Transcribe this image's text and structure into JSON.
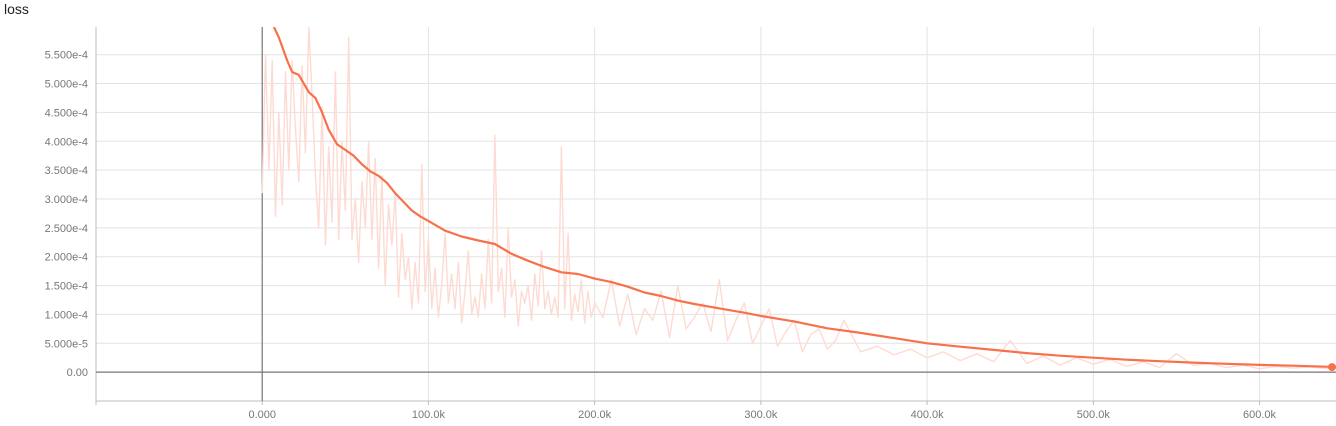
{
  "chart_data": {
    "type": "line",
    "title": "loss",
    "xlabel": "",
    "ylabel": "",
    "xlim": [
      -100000,
      646000
    ],
    "ylim": [
      -5e-05,
      0.000598
    ],
    "grid": true,
    "legend": "none",
    "x_ticks": [
      {
        "value": 0,
        "label": "0.000"
      },
      {
        "value": 100000,
        "label": "100.0k"
      },
      {
        "value": 200000,
        "label": "200.0k"
      },
      {
        "value": 300000,
        "label": "300.0k"
      },
      {
        "value": 400000,
        "label": "400.0k"
      },
      {
        "value": 500000,
        "label": "500.0k"
      },
      {
        "value": 600000,
        "label": "600.0k"
      }
    ],
    "y_ticks": [
      {
        "value": 0,
        "label": "0.00"
      },
      {
        "value": 5e-05,
        "label": "5.000e-5"
      },
      {
        "value": 0.0001,
        "label": "1.000e-4"
      },
      {
        "value": 0.00015,
        "label": "1.500e-4"
      },
      {
        "value": 0.0002,
        "label": "2.000e-4"
      },
      {
        "value": 0.00025,
        "label": "2.500e-4"
      },
      {
        "value": 0.0003,
        "label": "3.000e-4"
      },
      {
        "value": 0.00035,
        "label": "3.500e-4"
      },
      {
        "value": 0.0004,
        "label": "4.000e-4"
      },
      {
        "value": 0.00045,
        "label": "4.500e-4"
      },
      {
        "value": 0.0005,
        "label": "5.000e-4"
      },
      {
        "value": 0.00055,
        "label": "5.500e-4"
      }
    ],
    "series": [
      {
        "role": "smoothed",
        "color": "#f7714b",
        "x": [
          7000,
          10000,
          15000,
          18000,
          22000,
          25000,
          28000,
          32000,
          36000,
          40000,
          45000,
          50000,
          55000,
          60000,
          65000,
          70000,
          75000,
          80000,
          85000,
          90000,
          95000,
          100000,
          110000,
          120000,
          130000,
          140000,
          150000,
          160000,
          170000,
          180000,
          190000,
          200000,
          210000,
          220000,
          230000,
          240000,
          250000,
          260000,
          270000,
          280000,
          290000,
          300000,
          320000,
          340000,
          360000,
          380000,
          400000,
          420000,
          440000,
          460000,
          480000,
          500000,
          520000,
          540000,
          560000,
          580000,
          600000,
          620000,
          640000,
          646000
        ],
        "y": [
          0.000598,
          0.00058,
          0.00054,
          0.00052,
          0.000515,
          0.0005,
          0.000485,
          0.000475,
          0.00045,
          0.00042,
          0.000395,
          0.000385,
          0.000375,
          0.00036,
          0.000348,
          0.00034,
          0.000328,
          0.00031,
          0.000295,
          0.00028,
          0.00027,
          0.000262,
          0.000245,
          0.000235,
          0.000228,
          0.000222,
          0.000205,
          0.000193,
          0.000182,
          0.000173,
          0.00017,
          0.000162,
          0.000156,
          0.000148,
          0.000138,
          0.000132,
          0.000124,
          0.000118,
          0.000113,
          0.000108,
          0.000103,
          9.75e-05,
          8.8e-05,
          7.6e-05,
          6.8e-05,
          5.9e-05,
          5e-05,
          4.4e-05,
          3.85e-05,
          3.3e-05,
          2.85e-05,
          2.5e-05,
          2.15e-05,
          1.9e-05,
          1.65e-05,
          1.45e-05,
          1.25e-05,
          1.12e-05,
          9.5e-06,
          8.8e-06
        ]
      },
      {
        "role": "raw",
        "color": "#fddbd2",
        "x": [
          0,
          2000,
          4000,
          6000,
          8000,
          10000,
          12000,
          14000,
          16000,
          18000,
          20000,
          22000,
          24000,
          26000,
          28000,
          30000,
          32000,
          34000,
          36000,
          38000,
          40000,
          42000,
          44000,
          46000,
          48000,
          50000,
          52000,
          54000,
          56000,
          58000,
          60000,
          62000,
          64000,
          66000,
          68000,
          70000,
          72000,
          74000,
          76000,
          78000,
          80000,
          82000,
          84000,
          86000,
          88000,
          90000,
          92000,
          94000,
          96000,
          98000,
          100000,
          102000,
          104000,
          106000,
          108000,
          110000,
          112000,
          114000,
          116000,
          118000,
          120000,
          122000,
          124000,
          126000,
          128000,
          130000,
          132000,
          134000,
          136000,
          138000,
          140000,
          142000,
          144000,
          146000,
          148000,
          150000,
          152000,
          154000,
          156000,
          158000,
          160000,
          162000,
          164000,
          166000,
          168000,
          170000,
          172000,
          174000,
          176000,
          178000,
          180000,
          182000,
          184000,
          186000,
          188000,
          190000,
          192000,
          194000,
          196000,
          198000,
          200000,
          205000,
          210000,
          215000,
          220000,
          225000,
          230000,
          235000,
          240000,
          245000,
          250000,
          255000,
          260000,
          265000,
          270000,
          275000,
          280000,
          285000,
          290000,
          295000,
          300000,
          305000,
          310000,
          315000,
          320000,
          325000,
          330000,
          335000,
          340000,
          345000,
          350000,
          360000,
          370000,
          380000,
          390000,
          400000,
          410000,
          420000,
          430000,
          440000,
          450000,
          460000,
          470000,
          480000,
          490000,
          500000,
          510000,
          520000,
          530000,
          540000,
          550000,
          560000,
          570000,
          580000,
          590000,
          600000,
          610000,
          620000,
          630000,
          640000,
          646000
        ],
        "y": [
          0.00031,
          0.00055,
          0.00035,
          0.00054,
          0.00027,
          0.00045,
          0.00029,
          0.00052,
          0.00035,
          0.00054,
          0.00042,
          0.00033,
          0.00053,
          0.00038,
          0.000598,
          0.00048,
          0.00034,
          0.00025,
          0.00046,
          0.00022,
          0.00039,
          0.00026,
          0.00052,
          0.00023,
          0.0004,
          0.00028,
          0.00058,
          0.00023,
          0.0003,
          0.00019,
          0.00033,
          0.00025,
          0.0004,
          0.00023,
          0.00037,
          0.00018,
          0.00034,
          0.00015,
          0.00029,
          0.00022,
          0.00031,
          0.00013,
          0.00024,
          0.00016,
          0.0002,
          0.00011,
          0.00019,
          0.00012,
          0.00036,
          0.00014,
          0.00023,
          0.00011,
          0.00018,
          9.5e-05,
          0.00015,
          0.00024,
          0.00012,
          0.00017,
          0.00011,
          0.00019,
          8.5e-05,
          0.00014,
          0.00021,
          0.0001,
          0.00013,
          9.5e-05,
          0.00017,
          0.00011,
          0.00023,
          0.00012,
          0.00041,
          0.00014,
          0.00018,
          9.5e-05,
          0.00025,
          0.00013,
          0.00016,
          8e-05,
          0.00014,
          0.00012,
          0.00015,
          9e-05,
          0.00017,
          0.000115,
          0.00021,
          0.00011,
          0.00014,
          0.0001,
          0.00013,
          9.5e-05,
          0.00039,
          0.00011,
          0.00024,
          9e-05,
          0.000135,
          0.000105,
          0.00016,
          8.5e-05,
          0.00014,
          9.5e-05,
          0.00012,
          9.5e-05,
          0.00016,
          8e-05,
          0.000135,
          6.5e-05,
          0.00011,
          9e-05,
          0.00014,
          6e-05,
          0.00015,
          7.5e-05,
          9.5e-05,
          0.00012,
          7e-05,
          0.00016,
          5.5e-05,
          9e-05,
          0.00012,
          5e-05,
          8e-05,
          0.00011,
          4.5e-05,
          7e-05,
          9e-05,
          3.5e-05,
          6.5e-05,
          7.5e-05,
          4e-05,
          5.5e-05,
          9e-05,
          3.5e-05,
          4.5e-05,
          3e-05,
          4e-05,
          2.5e-05,
          3.5e-05,
          2e-05,
          3.2e-05,
          1.8e-05,
          5.5e-05,
          1.5e-05,
          2.8e-05,
          1.2e-05,
          2.5e-05,
          1.4e-05,
          2.2e-05,
          1e-05,
          1.8e-05,
          8e-06,
          3.2e-05,
          1.2e-05,
          1.5e-05,
          8e-06,
          1.2e-05,
          6e-06,
          1e-05,
          7e-06,
          9e-06,
          6e-06,
          8e-06
        ]
      }
    ]
  }
}
